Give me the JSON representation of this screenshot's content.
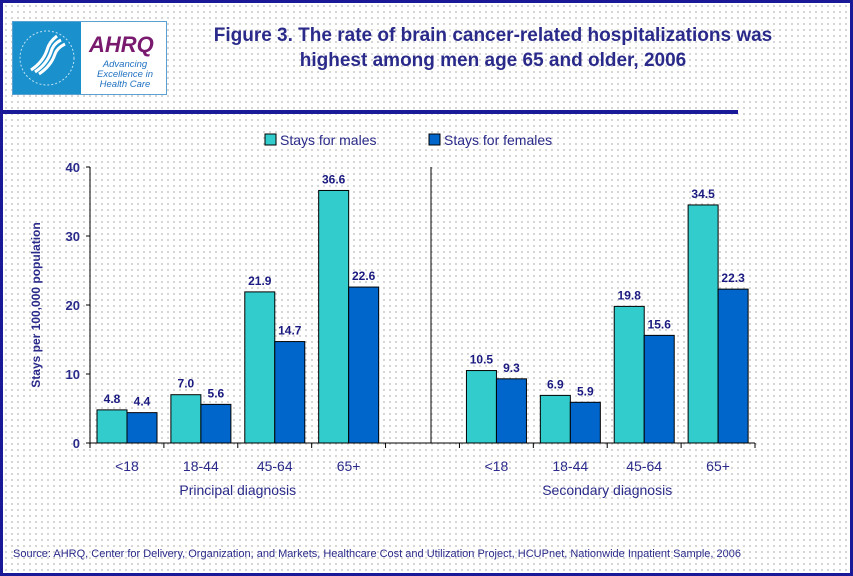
{
  "title": "Figure 3. The rate of brain cancer-related hospitalizations was highest among men age 65 and older, 2006",
  "logo": {
    "name": "AHRQ",
    "tagline": "Advancing Excellence in Health Care"
  },
  "source": "Source: AHRQ, Center for Delivery, Organization, and Markets, Healthcare Cost and Utilization Project, HCUPnet, Nationwide Inpatient Sample, 2006",
  "colors": {
    "males": "#33CCCC",
    "females": "#0066CC",
    "text": "#2a2a8a"
  },
  "chart_data": {
    "type": "bar",
    "ylabel": "Stays per 100,000 population",
    "ylim": [
      0,
      40
    ],
    "yticks": [
      0,
      10,
      20,
      30,
      40
    ],
    "legend_position": "top",
    "grid": false,
    "groups": [
      {
        "label": "Principal diagnosis",
        "categories": [
          "<18",
          "18-44",
          "45-64",
          "65+"
        ],
        "series": [
          {
            "name": "Stays for males",
            "values": [
              4.8,
              7.0,
              21.9,
              36.6
            ]
          },
          {
            "name": "Stays for females",
            "values": [
              4.4,
              5.6,
              14.7,
              22.6
            ]
          }
        ]
      },
      {
        "label": "Secondary diagnosis",
        "categories": [
          "<18",
          "18-44",
          "45-64",
          "65+"
        ],
        "series": [
          {
            "name": "Stays for males",
            "values": [
              10.5,
              6.9,
              19.8,
              34.5
            ]
          },
          {
            "name": "Stays for females",
            "values": [
              9.3,
              5.9,
              15.6,
              22.3
            ]
          }
        ]
      }
    ]
  }
}
